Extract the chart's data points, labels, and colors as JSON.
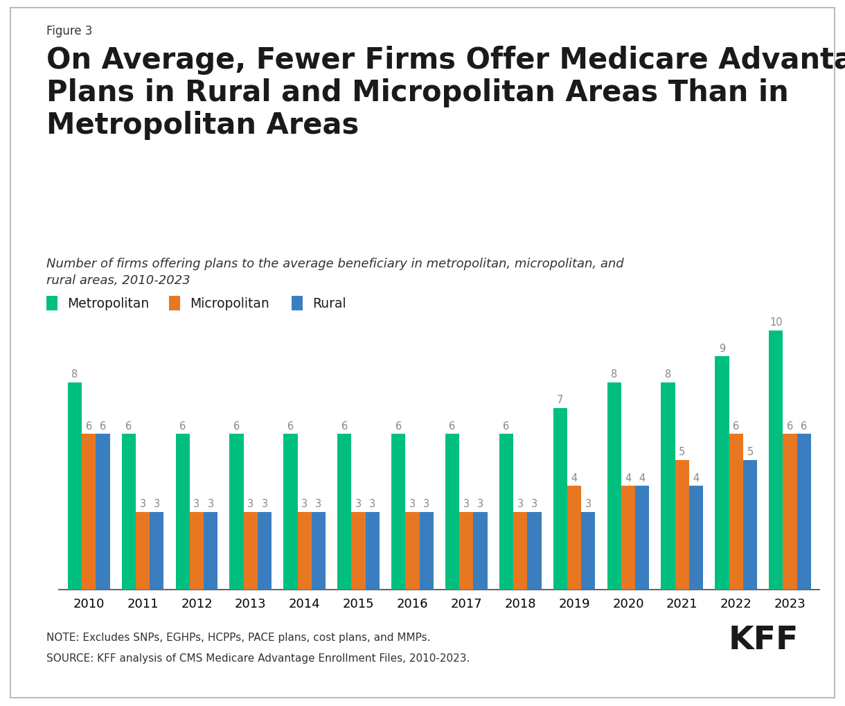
{
  "figure_label": "Figure 3",
  "title": "On Average, Fewer Firms Offer Medicare Advantage\nPlans in Rural and Micropolitan Areas Than in\nMetropolitan Areas",
  "subtitle": "Number of firms offering plans to the average beneficiary in metropolitan, micropolitan, and\nrural areas, 2010-2023",
  "years": [
    2010,
    2011,
    2012,
    2013,
    2014,
    2015,
    2016,
    2017,
    2018,
    2019,
    2020,
    2021,
    2022,
    2023
  ],
  "metropolitan": [
    8,
    6,
    6,
    6,
    6,
    6,
    6,
    6,
    6,
    7,
    8,
    8,
    9,
    10
  ],
  "micropolitan": [
    6,
    3,
    3,
    3,
    3,
    3,
    3,
    3,
    3,
    4,
    4,
    5,
    6,
    6
  ],
  "rural": [
    6,
    3,
    3,
    3,
    3,
    3,
    3,
    3,
    3,
    3,
    4,
    4,
    5,
    6
  ],
  "metro_color": "#00BF7F",
  "micro_color": "#E87722",
  "rural_color": "#3B7EBF",
  "label_color": "#888888",
  "background_color": "#FFFFFF",
  "note_line1": "NOTE: Excludes SNPs, EGHPs, HCPPs, PACE plans, cost plans, and MMPs.",
  "note_line2": "SOURCE: KFF analysis of CMS Medicare Advantage Enrollment Files, 2010-2023.",
  "ylim": [
    0,
    12
  ],
  "bar_width": 0.26
}
